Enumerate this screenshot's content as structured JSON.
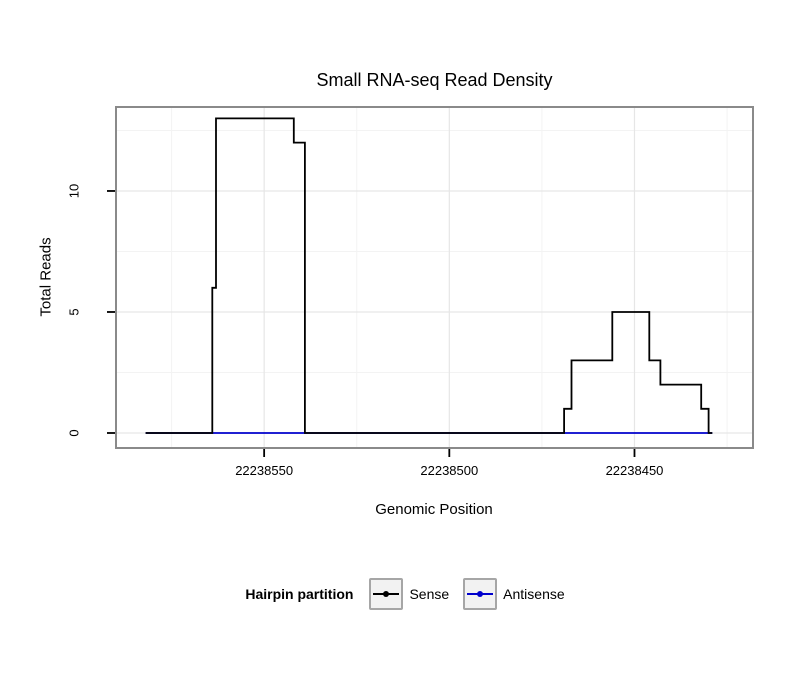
{
  "chart_data": {
    "type": "line",
    "title": "Small RNA-seq Read Density",
    "xlabel": "Genomic Position",
    "ylabel": "Total Reads",
    "x_axis": {
      "reversed": true,
      "domain_left": 22238590,
      "domain_right": 22238418,
      "ticks": [
        22238550,
        22238500,
        22238450
      ],
      "minor_ticks": [
        22238575,
        22238525,
        22238475,
        22238425
      ]
    },
    "y_axis": {
      "domain_min": -0.62,
      "domain_max": 13.47,
      "ticks": [
        0,
        5,
        10
      ],
      "minor_ticks": [
        2.5,
        7.5,
        12.5
      ]
    },
    "series": [
      {
        "name": "Antisense",
        "color": "#0000cd",
        "points": [
          [
            22238582,
            0
          ],
          [
            22238429,
            0
          ]
        ]
      },
      {
        "name": "Sense",
        "color": "#000000",
        "points": [
          [
            22238582,
            0
          ],
          [
            22238564,
            0
          ],
          [
            22238564,
            6
          ],
          [
            22238563,
            6
          ],
          [
            22238563,
            13
          ],
          [
            22238542,
            13
          ],
          [
            22238542,
            12
          ],
          [
            22238539,
            12
          ],
          [
            22238539,
            0
          ],
          [
            22238469,
            0
          ],
          [
            22238469,
            1
          ],
          [
            22238467,
            1
          ],
          [
            22238467,
            3
          ],
          [
            22238456,
            3
          ],
          [
            22238456,
            5
          ],
          [
            22238446,
            5
          ],
          [
            22238446,
            3
          ],
          [
            22238443,
            3
          ],
          [
            22238443,
            2
          ],
          [
            22238432,
            2
          ],
          [
            22238432,
            1
          ],
          [
            22238430,
            1
          ],
          [
            22238430,
            0
          ],
          [
            22238429,
            0
          ]
        ]
      }
    ],
    "legend": {
      "title": "Hairpin partition",
      "entries": [
        {
          "label": "Sense",
          "color": "#000000"
        },
        {
          "label": "Antisense",
          "color": "#0000cd"
        }
      ],
      "position": "bottom"
    },
    "grid": true
  },
  "style": {
    "grid_major": "#e6e6e6",
    "grid_minor": "#f3f3f3",
    "panel_border": "#8a8a8a",
    "axis_tick_color": "#000000",
    "legend_key_fill": "#f2f2f2",
    "legend_key_border": "#a6a6a6"
  }
}
